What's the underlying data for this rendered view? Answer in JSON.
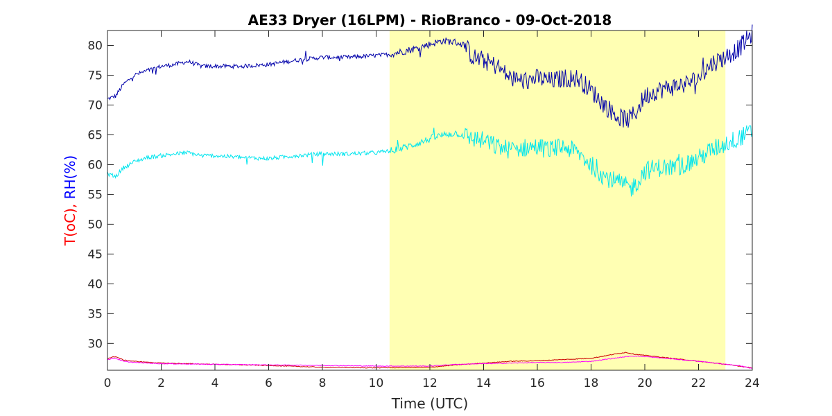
{
  "chart_data": {
    "type": "line",
    "title": "AE33 Dryer (16LPM)  - RioBranco - 09-Oct-2018",
    "xlabel": "Time (UTC)",
    "ylabel_parts": [
      {
        "text": "T(oC), ",
        "color": "#ff0000"
      },
      {
        "text": "RH(%)",
        "color": "#0000ff"
      }
    ],
    "xlim": [
      0,
      24
    ],
    "ylim": [
      25.5,
      82.5
    ],
    "xticks": [
      0,
      2,
      4,
      6,
      8,
      10,
      12,
      14,
      16,
      18,
      20,
      22,
      24
    ],
    "yticks": [
      30,
      35,
      40,
      45,
      50,
      55,
      60,
      65,
      70,
      75,
      80
    ],
    "grid": false,
    "legend": "none",
    "highlight": {
      "x_start": 10.5,
      "x_end": 23.0,
      "color": "#ffffb3"
    },
    "series": [
      {
        "color": "#0000aa",
        "points": [
          [
            0.0,
            71.0
          ],
          [
            0.3,
            71.5
          ],
          [
            0.6,
            73.5
          ],
          [
            1.0,
            75.0
          ],
          [
            1.5,
            75.8
          ],
          [
            2.0,
            76.5
          ],
          [
            2.5,
            76.8
          ],
          [
            3.0,
            77.3
          ],
          [
            3.5,
            76.5
          ],
          [
            4.0,
            76.5
          ],
          [
            5.0,
            76.5
          ],
          [
            6.0,
            76.8
          ],
          [
            7.0,
            77.5
          ],
          [
            8.0,
            78.0
          ],
          [
            9.0,
            78.0
          ],
          [
            10.0,
            78.3
          ],
          [
            10.5,
            78.5
          ],
          [
            11.0,
            79.0
          ],
          [
            11.5,
            79.5
          ],
          [
            12.0,
            80.2
          ],
          [
            12.5,
            80.8
          ],
          [
            13.0,
            80.5
          ],
          [
            13.3,
            80.0
          ],
          [
            13.6,
            78.0
          ],
          [
            14.0,
            77.5
          ],
          [
            14.5,
            76.5
          ],
          [
            15.0,
            74.5
          ],
          [
            15.5,
            74.0
          ],
          [
            16.0,
            74.5
          ],
          [
            16.5,
            74.0
          ],
          [
            17.0,
            74.5
          ],
          [
            17.5,
            74.5
          ],
          [
            18.0,
            72.5
          ],
          [
            18.5,
            70.0
          ],
          [
            19.0,
            68.0
          ],
          [
            19.4,
            67.5
          ],
          [
            19.7,
            69.0
          ],
          [
            20.0,
            71.5
          ],
          [
            20.5,
            72.5
          ],
          [
            21.0,
            73.0
          ],
          [
            21.5,
            73.5
          ],
          [
            22.0,
            74.5
          ],
          [
            22.5,
            77.0
          ],
          [
            23.0,
            78.0
          ],
          [
            23.5,
            79.5
          ],
          [
            24.0,
            82.0
          ]
        ]
      },
      {
        "color": "#00e5ee",
        "points": [
          [
            0.0,
            58.5
          ],
          [
            0.3,
            58.0
          ],
          [
            0.6,
            59.5
          ],
          [
            1.0,
            60.5
          ],
          [
            1.5,
            61.2
          ],
          [
            2.0,
            61.5
          ],
          [
            2.5,
            61.8
          ],
          [
            3.0,
            62.0
          ],
          [
            3.5,
            61.5
          ],
          [
            4.0,
            61.5
          ],
          [
            5.0,
            61.2
          ],
          [
            6.0,
            61.0
          ],
          [
            7.0,
            61.5
          ],
          [
            8.0,
            61.8
          ],
          [
            9.0,
            61.8
          ],
          [
            10.0,
            62.0
          ],
          [
            10.5,
            62.3
          ],
          [
            11.0,
            62.8
          ],
          [
            11.5,
            63.5
          ],
          [
            12.0,
            64.3
          ],
          [
            12.5,
            65.0
          ],
          [
            13.0,
            65.3
          ],
          [
            13.5,
            64.5
          ],
          [
            14.0,
            64.0
          ],
          [
            14.5,
            63.0
          ],
          [
            15.0,
            62.5
          ],
          [
            15.5,
            62.8
          ],
          [
            16.0,
            63.0
          ],
          [
            16.5,
            62.5
          ],
          [
            17.0,
            63.0
          ],
          [
            17.5,
            62.0
          ],
          [
            18.0,
            60.0
          ],
          [
            18.5,
            58.0
          ],
          [
            19.0,
            57.0
          ],
          [
            19.5,
            56.0
          ],
          [
            19.8,
            57.5
          ],
          [
            20.0,
            59.0
          ],
          [
            20.5,
            59.5
          ],
          [
            21.0,
            59.5
          ],
          [
            21.5,
            60.0
          ],
          [
            22.0,
            61.0
          ],
          [
            22.5,
            62.5
          ],
          [
            23.0,
            63.5
          ],
          [
            23.5,
            64.5
          ],
          [
            24.0,
            65.5
          ]
        ]
      },
      {
        "color": "#cc0000",
        "points": [
          [
            0.0,
            27.5
          ],
          [
            0.3,
            27.8
          ],
          [
            0.6,
            27.2
          ],
          [
            1.0,
            27.0
          ],
          [
            2.0,
            26.7
          ],
          [
            4.0,
            26.5
          ],
          [
            6.0,
            26.3
          ],
          [
            8.0,
            26.0
          ],
          [
            10.0,
            25.9
          ],
          [
            12.0,
            26.0
          ],
          [
            13.0,
            26.4
          ],
          [
            14.0,
            26.7
          ],
          [
            15.0,
            27.0
          ],
          [
            16.0,
            27.1
          ],
          [
            17.0,
            27.3
          ],
          [
            18.0,
            27.5
          ],
          [
            18.5,
            27.9
          ],
          [
            19.0,
            28.3
          ],
          [
            19.3,
            28.5
          ],
          [
            19.6,
            28.2
          ],
          [
            20.0,
            28.0
          ],
          [
            21.0,
            27.5
          ],
          [
            22.0,
            27.0
          ],
          [
            23.0,
            26.5
          ],
          [
            23.5,
            26.2
          ],
          [
            24.0,
            25.9
          ]
        ]
      },
      {
        "color": "#ff00ff",
        "points": [
          [
            0.0,
            27.3
          ],
          [
            0.3,
            27.5
          ],
          [
            0.6,
            27.0
          ],
          [
            1.0,
            26.8
          ],
          [
            2.0,
            26.6
          ],
          [
            4.0,
            26.5
          ],
          [
            6.0,
            26.4
          ],
          [
            8.0,
            26.3
          ],
          [
            10.0,
            26.2
          ],
          [
            12.0,
            26.2
          ],
          [
            13.0,
            26.5
          ],
          [
            14.0,
            26.6
          ],
          [
            15.0,
            26.7
          ],
          [
            16.0,
            26.8
          ],
          [
            17.0,
            26.8
          ],
          [
            18.0,
            27.0
          ],
          [
            18.5,
            27.3
          ],
          [
            19.0,
            27.6
          ],
          [
            19.5,
            27.9
          ],
          [
            20.0,
            27.8
          ],
          [
            21.0,
            27.4
          ],
          [
            22.0,
            27.0
          ],
          [
            23.0,
            26.5
          ],
          [
            23.5,
            26.3
          ],
          [
            24.0,
            25.8
          ]
        ]
      }
    ]
  }
}
